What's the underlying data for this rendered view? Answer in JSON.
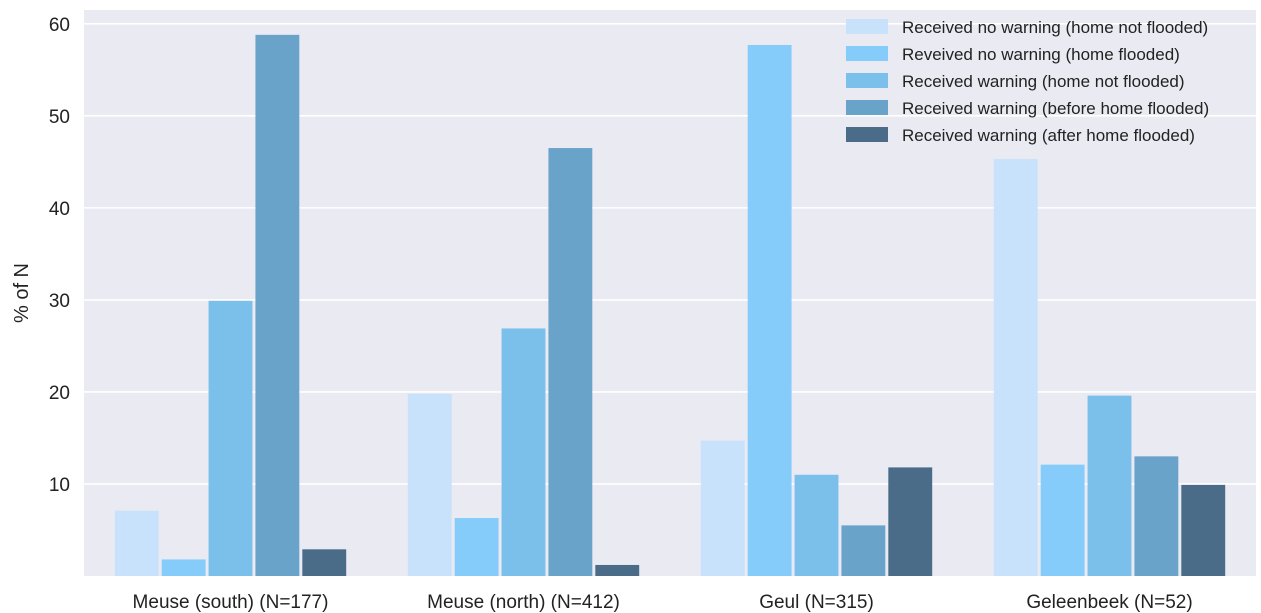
{
  "chart_data": {
    "type": "bar",
    "categories": [
      "Meuse (south) (N=177)",
      "Meuse (north) (N=412)",
      "Geul (N=315)",
      "Geleenbeek (N=52)"
    ],
    "series": [
      {
        "name": "Received no warning (home not flooded)",
        "color": "#c9e2fb",
        "values": [
          7.1,
          19.8,
          14.7,
          45.3
        ]
      },
      {
        "name": "Reveived no warning (home flooded)",
        "color": "#85ccfb",
        "values": [
          1.8,
          6.3,
          57.7,
          12.1
        ]
      },
      {
        "name": "Received warning (home not flooded)",
        "color": "#7bbfeb",
        "values": [
          29.9,
          26.9,
          11.0,
          19.6
        ]
      },
      {
        "name": "Received warning (before home flooded)",
        "color": "#6aa3ca",
        "values": [
          58.8,
          46.5,
          5.5,
          13.0
        ]
      },
      {
        "name": "Received warning (after home flooded)",
        "color": "#4a6c88",
        "values": [
          2.9,
          1.2,
          11.8,
          9.9
        ]
      }
    ],
    "title": "",
    "xlabel": "",
    "ylabel": "% of N",
    "ylim": [
      0,
      61.5
    ],
    "yticks": [
      10,
      20,
      30,
      40,
      50,
      60
    ],
    "grid": true,
    "legend_position": "top-right",
    "background_color": "#eaeaf2",
    "grid_color": "#ffffff"
  }
}
